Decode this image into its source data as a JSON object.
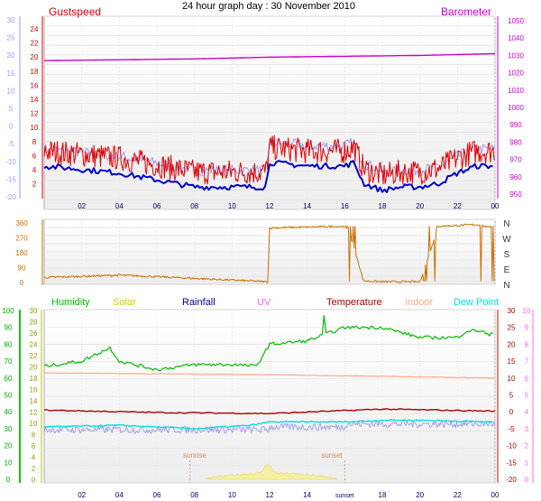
{
  "title": "24 hour graph day : 30 November 2010",
  "colors": {
    "gust": "#e00000",
    "wind": "#0000cc",
    "baro": "#cc00cc",
    "winddir": "#c87000",
    "humidity": "#00bb00",
    "solar": "#cccc00",
    "rainfall": "#000099",
    "uv": "#ff66ff",
    "temperature": "#aa0000",
    "indoor": "#ffaa88",
    "dewpoint": "#00dddd",
    "wind_lavender": "#9999ee"
  },
  "x_ticks": [
    "02",
    "04",
    "06",
    "08",
    "10",
    "12",
    "14",
    "16",
    "18",
    "20",
    "22",
    "00"
  ],
  "panel_wind": {
    "label_left": "Gustspeed",
    "label_right": "Barometer",
    "y_left_outer": [
      "30",
      "25",
      "20",
      "15",
      "10",
      "5",
      "0",
      "-5",
      "-10",
      "-15",
      "-20"
    ],
    "y_left_inner": [
      "24",
      "22",
      "20",
      "18",
      "16",
      "14",
      "12",
      "10",
      "8",
      "6",
      "4",
      "2"
    ],
    "y_right": [
      "1050",
      "1040",
      "1030",
      "1020",
      "1010",
      "1000",
      "990",
      "980",
      "970",
      "960",
      "950"
    ]
  },
  "panel_dir": {
    "y_left": [
      "360",
      "270",
      "180",
      "90",
      "0"
    ],
    "y_right": [
      "N",
      "W",
      "S",
      "E",
      "N"
    ]
  },
  "panel_temp": {
    "legend": [
      "Humidity",
      "Solar",
      "Rainfall",
      "UV",
      "Temperature",
      "Indoor",
      "Dew Point"
    ],
    "y_left_outer": [
      "100",
      "90",
      "80",
      "70",
      "60",
      "50",
      "40",
      "30",
      "20",
      "10",
      "0"
    ],
    "y_left_inner": [
      "30",
      "28",
      "26",
      "24",
      "22",
      "20",
      "18",
      "16",
      "14",
      "12",
      "10",
      "8",
      "6",
      "4",
      "2",
      "0"
    ],
    "y_right_temp": [
      "30",
      "25",
      "20",
      "15",
      "10",
      "5",
      "0",
      "-5",
      "-10",
      "-15",
      "-20"
    ],
    "y_right_uv": [
      "10",
      "9",
      "8",
      "7",
      "6",
      "5",
      "4",
      "3",
      "2",
      "1",
      "0"
    ],
    "sunrise": "sunrise",
    "sunset": "sunset",
    "sunset_tick": "sunset"
  },
  "chart_data": [
    {
      "type": "line",
      "title": "24 hour graph day : 30 November 2010",
      "x_unit": "hour",
      "series": [
        {
          "name": "Gustspeed",
          "x": [
            0,
            2,
            4,
            6,
            8,
            10,
            11.8,
            12,
            14,
            16,
            16.5,
            17,
            18,
            19,
            20,
            21,
            22,
            23,
            24
          ],
          "values": [
            6,
            5.5,
            5,
            4,
            3,
            3,
            3,
            6.5,
            6,
            6,
            6.5,
            3.5,
            2.5,
            3,
            3,
            3.5,
            5,
            6,
            6
          ]
        },
        {
          "name": "Barometer",
          "x": [
            0,
            4,
            8,
            12,
            16,
            20,
            24
          ],
          "values": [
            1027,
            1027.5,
            1028,
            1029,
            1029.5,
            1030,
            1031
          ]
        }
      ]
    },
    {
      "type": "line",
      "x_unit": "hour",
      "ylim": [
        0,
        360
      ],
      "series": [
        {
          "x": [
            0,
            4,
            8,
            11.9,
            12,
            16,
            16.2,
            17,
            18,
            20,
            21,
            23,
            24
          ],
          "values": [
            30,
            45,
            25,
            5,
            330,
            340,
            320,
            10,
            5,
            5,
            340,
            350,
            330
          ]
        }
      ]
    },
    {
      "type": "line",
      "x_unit": "hour",
      "series": [
        {
          "name": "Humidity",
          "x": [
            0,
            2,
            3.5,
            4,
            6,
            8,
            10,
            11.3,
            12,
            14,
            16,
            18,
            20,
            22,
            22.5,
            23.3,
            23.7,
            24
          ],
          "values": [
            67,
            70,
            78,
            70,
            65,
            68,
            68,
            67,
            80,
            82,
            90,
            90,
            84,
            84,
            88,
            88,
            85,
            88
          ]
        },
        {
          "name": "Temperature",
          "x": [
            0,
            6,
            12,
            18,
            24
          ],
          "values": [
            0.5,
            -0.2,
            -0.5,
            0.8,
            0.2
          ]
        },
        {
          "name": "Indoor",
          "x": [
            0,
            12,
            24
          ],
          "values": [
            11.5,
            11,
            10
          ]
        },
        {
          "name": "Dew Point",
          "x": [
            0,
            4,
            8,
            11,
            12,
            16,
            18,
            20,
            24
          ],
          "values": [
            -4.5,
            -4,
            -5,
            -4,
            -3,
            -3,
            -2.5,
            -2.5,
            -3
          ]
        }
      ]
    }
  ]
}
